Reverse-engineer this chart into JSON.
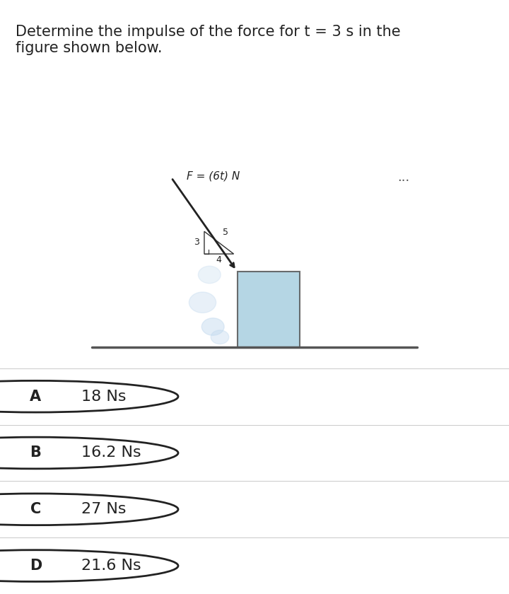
{
  "title_text": "Determine the impulse of the force for t = 3 s in the\nfigure shown below.",
  "title_fontsize": 15,
  "bg_color": "#f0f0f0",
  "figure_bg": "#ffffff",
  "panel_bg": "#d6e8f5",
  "box_color": "#a8cfe0",
  "box_edge": "#555555",
  "ground_color": "#555555",
  "force_label": "F = (6t) N",
  "side3": "3",
  "side4": "4",
  "side5": "5",
  "dots": "...",
  "answers": [
    {
      "label": "A",
      "text": "18 Ns"
    },
    {
      "label": "B",
      "text": "16.2 Ns"
    },
    {
      "label": "C",
      "text": "27 Ns"
    },
    {
      "label": "D",
      "text": "21.6 Ns"
    }
  ],
  "answer_bg": "#f0f0f0",
  "answer_fontsize": 16,
  "circle_fontsize": 15
}
